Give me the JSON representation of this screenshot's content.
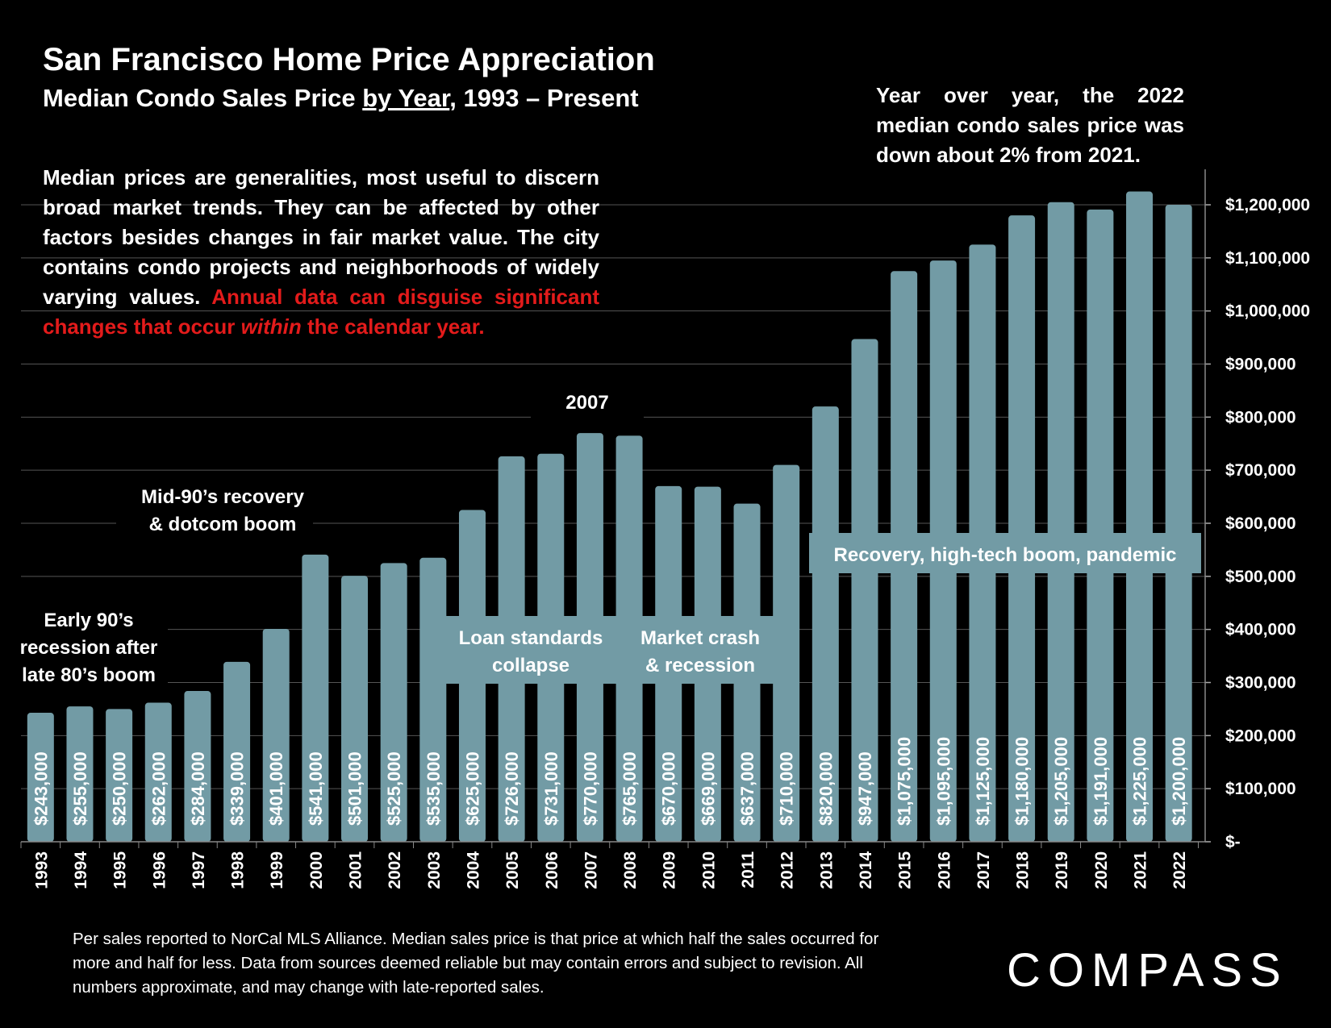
{
  "header": {
    "title": "San Francisco Home Price Appreciation",
    "subtitle_pre": "Median Condo Sales Price ",
    "subtitle_underlined": "by Year",
    "subtitle_post": ", 1993 – Present"
  },
  "callout": {
    "yoy_text": "Year over year, the 2022 median condo sales price was down about 2% from 2021."
  },
  "note": {
    "text_white": "Median prices are generalities, most useful to discern broad market trends. They can be affected by other factors besides changes in fair market value. The city contains condo projects and neighborhoods of widely varying values. ",
    "text_red_1": "Annual data can disguise significant changes that occur ",
    "text_red_italic": "within",
    "text_red_2": " the calendar year."
  },
  "chart_data": {
    "type": "bar",
    "title": "Median Condo Sales Price by Year, 1993 – Present",
    "categories": [
      "1993",
      "1994",
      "1995",
      "1996",
      "1997",
      "1998",
      "1999",
      "2000",
      "2001",
      "2002",
      "2003",
      "2004",
      "2005",
      "2006",
      "2007",
      "2008",
      "2009",
      "2010",
      "2011",
      "2012",
      "2013",
      "2014",
      "2015",
      "2016",
      "2017",
      "2018",
      "2019",
      "2020",
      "2021",
      "2022"
    ],
    "values": [
      243000,
      255000,
      250000,
      262000,
      284000,
      339000,
      401000,
      541000,
      501000,
      525000,
      535000,
      625000,
      726000,
      731000,
      770000,
      765000,
      670000,
      669000,
      637000,
      710000,
      820000,
      947000,
      1075000,
      1095000,
      1125000,
      1180000,
      1205000,
      1191000,
      1225000,
      1200000
    ],
    "data_labels": [
      "$243,000",
      "$255,000",
      "$250,000",
      "$262,000",
      "$284,000",
      "$339,000",
      "$401,000",
      "$541,000",
      "$501,000",
      "$525,000",
      "$535,000",
      "$625,000",
      "$726,000",
      "$731,000",
      "$770,000",
      "$765,000",
      "$670,000",
      "$669,000",
      "$637,000",
      "$710,000",
      "$820,000",
      "$947,000",
      "$1,075,000",
      "$1,095,000",
      "$1,125,000",
      "$1,180,000",
      "$1,205,000",
      "$1,191,000",
      "$1,225,000",
      "$1,200,000"
    ],
    "ylim": [
      0,
      1200000
    ],
    "y_ticks": [
      0,
      100000,
      200000,
      300000,
      400000,
      500000,
      600000,
      700000,
      800000,
      900000,
      1000000,
      1100000,
      1200000
    ],
    "y_tick_labels": [
      "$-",
      "$100,000",
      "$200,000",
      "$300,000",
      "$400,000",
      "$500,000",
      "$600,000",
      "$700,000",
      "$800,000",
      "$900,000",
      "$1,000,000",
      "$1,100,000",
      "$1,200,000"
    ],
    "y_axis_side": "right",
    "grid": true,
    "bar_color": "#729ba5",
    "annotations": [
      {
        "name": "early-90s",
        "lines": [
          "Early 90’s",
          "recession after",
          "late 80’s boom"
        ]
      },
      {
        "name": "mid-90s",
        "lines": [
          "Mid-90’s recovery",
          "& dotcom boom"
        ]
      },
      {
        "name": "2007",
        "lines": [
          "2007"
        ]
      },
      {
        "name": "loan-standards",
        "lines": [
          "Loan standards",
          "collapse"
        ]
      },
      {
        "name": "market-crash",
        "lines": [
          "Market crash",
          "& recession"
        ]
      },
      {
        "name": "recovery",
        "lines": [
          "Recovery, high-tech boom, pandemic"
        ]
      }
    ]
  },
  "footer": {
    "text": "Per sales reported to NorCal MLS Alliance. Median sales price is that price at which half the sales occurred for more and half for less. Data from sources deemed reliable but may contain errors and subject to revision. All numbers approximate, and may change with late-reported sales."
  },
  "brand": {
    "logo_text": "COMPASS"
  }
}
